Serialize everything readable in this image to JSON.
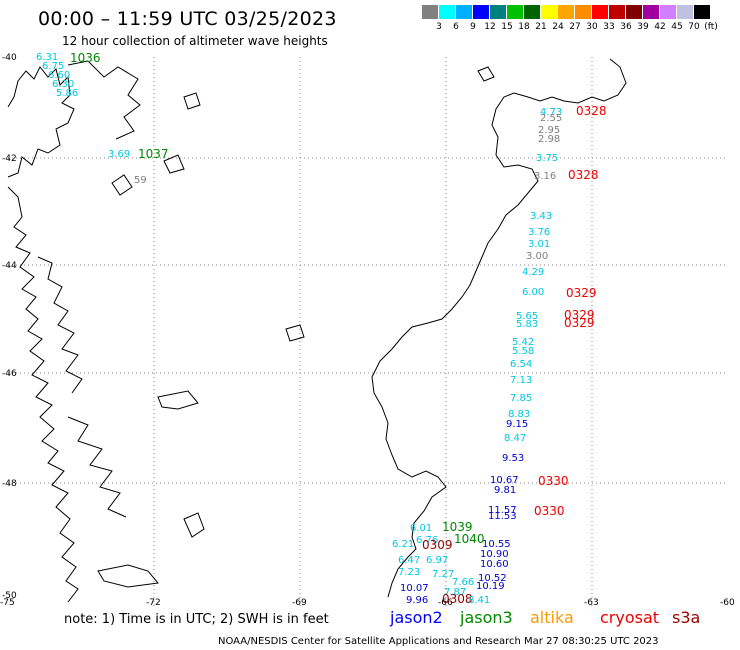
{
  "header": {
    "title": "00:00 – 11:59 UTC 03/25/2023",
    "subtitle": "12 hour collection of altimeter wave heights"
  },
  "scale": {
    "colors": [
      "#808080",
      "#00ffff",
      "#00b0ff",
      "#0000ff",
      "#008080",
      "#00c000",
      "#006400",
      "#ffff00",
      "#ffa500",
      "#ff8c00",
      "#ff0000",
      "#c00000",
      "#800000",
      "#a000a0",
      "#d080ff",
      "#c0c0e0",
      "#000000"
    ],
    "labels": [
      "3",
      "6",
      "9",
      "12",
      "15",
      "18",
      "21",
      "24",
      "27",
      "30",
      "33",
      "36",
      "39",
      "42",
      "45",
      "70",
      "(ft)"
    ]
  },
  "map": {
    "lat_labels": [
      "-40",
      "-42",
      "-44",
      "-46",
      "-48",
      "-50"
    ],
    "lon_labels": [
      "-75",
      "-72",
      "-69",
      "-66",
      "-63",
      "-60"
    ],
    "wave_labels": [
      {
        "text": "6.31",
        "color": "#00c8e0"
      },
      {
        "text": "6.75",
        "color": "#00c8e0"
      },
      {
        "text": "6.60",
        "color": "#00c8e0"
      },
      {
        "text": "6.30",
        "color": "#00c8e0"
      },
      {
        "text": "5.86",
        "color": "#00c8e0"
      },
      {
        "text": "1036",
        "color": "#008800"
      },
      {
        "text": "1037",
        "color": "#008800"
      },
      {
        "text": "3.69",
        "color": "#00c8e0"
      },
      {
        "text": "59",
        "color": "#808080"
      },
      {
        "text": "4.73",
        "color": "#00c8e0"
      },
      {
        "text": "2.55",
        "color": "#808080"
      },
      {
        "text": "0328",
        "color": "#ee0000"
      },
      {
        "text": "2.95",
        "color": "#808080"
      },
      {
        "text": "2.98",
        "color": "#808080"
      },
      {
        "text": "3.75",
        "color": "#00c8e0"
      },
      {
        "text": "3.16",
        "color": "#808080"
      },
      {
        "text": "0328",
        "color": "#ee0000"
      },
      {
        "text": "3.43",
        "color": "#00c8e0"
      },
      {
        "text": "3.76",
        "color": "#00c8e0"
      },
      {
        "text": "3.01",
        "color": "#00c8e0"
      },
      {
        "text": "3.00",
        "color": "#808080"
      },
      {
        "text": "4.29",
        "color": "#00c8e0"
      },
      {
        "text": "6.00",
        "color": "#00c8e0"
      },
      {
        "text": "0329",
        "color": "#ee0000"
      },
      {
        "text": "5.65",
        "color": "#00c8e0"
      },
      {
        "text": "0329",
        "color": "#ee0000"
      },
      {
        "text": "5.83",
        "color": "#00c8e0"
      },
      {
        "text": "0329",
        "color": "#ee0000"
      },
      {
        "text": "5.42",
        "color": "#00c8e0"
      },
      {
        "text": "5.58",
        "color": "#00c8e0"
      },
      {
        "text": "6.54",
        "color": "#00c8e0"
      },
      {
        "text": "7.13",
        "color": "#00c8e0"
      },
      {
        "text": "7.85",
        "color": "#00c8e0"
      },
      {
        "text": "8.83",
        "color": "#00c8e0"
      },
      {
        "text": "9.15",
        "color": "#0000cc"
      },
      {
        "text": "8.47",
        "color": "#00c8e0"
      },
      {
        "text": "9.53",
        "color": "#0000cc"
      },
      {
        "text": "10.67",
        "color": "#0000cc"
      },
      {
        "text": "0330",
        "color": "#ee0000"
      },
      {
        "text": "9.81",
        "color": "#0000cc"
      },
      {
        "text": "11.57",
        "color": "#0000cc"
      },
      {
        "text": "0330",
        "color": "#ee0000"
      },
      {
        "text": "11.53",
        "color": "#0000cc"
      },
      {
        "text": "6.01",
        "color": "#00c8e0"
      },
      {
        "text": "1039",
        "color": "#008800"
      },
      {
        "text": "1040",
        "color": "#008800"
      },
      {
        "text": "6.76",
        "color": "#00c8e0"
      },
      {
        "text": "0309",
        "color": "#990000"
      },
      {
        "text": "6.21",
        "color": "#00c8e0"
      },
      {
        "text": "10.55",
        "color": "#0000cc"
      },
      {
        "text": "6.47",
        "color": "#00c8e0"
      },
      {
        "text": "6.97",
        "color": "#00c8e0"
      },
      {
        "text": "10.90",
        "color": "#0000cc"
      },
      {
        "text": "10.60",
        "color": "#0000cc"
      },
      {
        "text": "7.23",
        "color": "#00c8e0"
      },
      {
        "text": "7.27",
        "color": "#00c8e0"
      },
      {
        "text": "10.52",
        "color": "#0000cc"
      },
      {
        "text": "7.66",
        "color": "#00c8e0"
      },
      {
        "text": "10.19",
        "color": "#0000cc"
      },
      {
        "text": "10.07",
        "color": "#0000cc"
      },
      {
        "text": "7.87",
        "color": "#00c8e0"
      },
      {
        "text": "9.96",
        "color": "#0000cc"
      },
      {
        "text": "0308",
        "color": "#990000"
      },
      {
        "text": "8.41",
        "color": "#00c8e0"
      }
    ]
  },
  "footer": {
    "note": "note:  1) Time is in UTC;  2) SWH is in feet",
    "credits": "NOAA/NESDIS Center for Satellite Applications and Research    Mar 27 08:30:25 UTC 2023",
    "legend": {
      "jason2": "jason2",
      "jason3": "jason3",
      "altika": "altika",
      "cryosat": "cryosat",
      "s3a": "s3a"
    }
  }
}
